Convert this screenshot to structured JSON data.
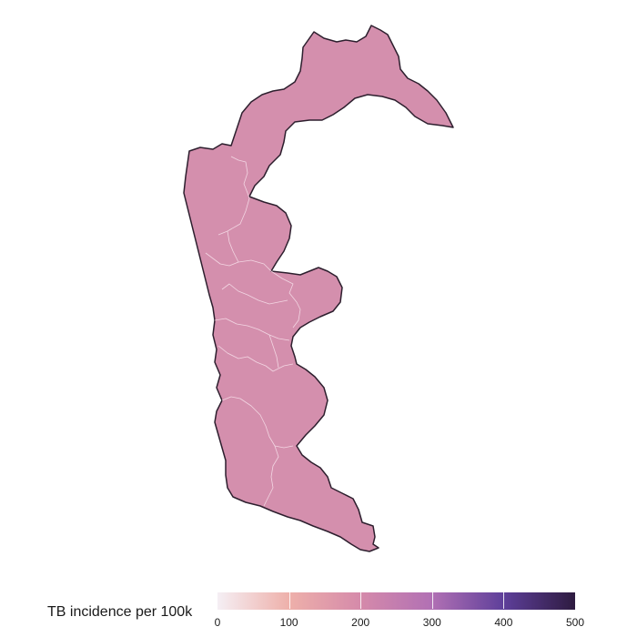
{
  "map": {
    "region_fill": "#d48fad",
    "outline_color": "#2d1f2e",
    "internal_border_color": "#f3d6e3"
  },
  "legend": {
    "title": "TB incidence per 100k",
    "min": 0,
    "max": 500,
    "ticks": [
      "0",
      "100",
      "200",
      "300",
      "400",
      "500"
    ],
    "gradient_colors": [
      "#f5eff4",
      "#eeb0aa",
      "#d58aaa",
      "#b170b4",
      "#5e3f9a",
      "#2e1b40"
    ]
  }
}
